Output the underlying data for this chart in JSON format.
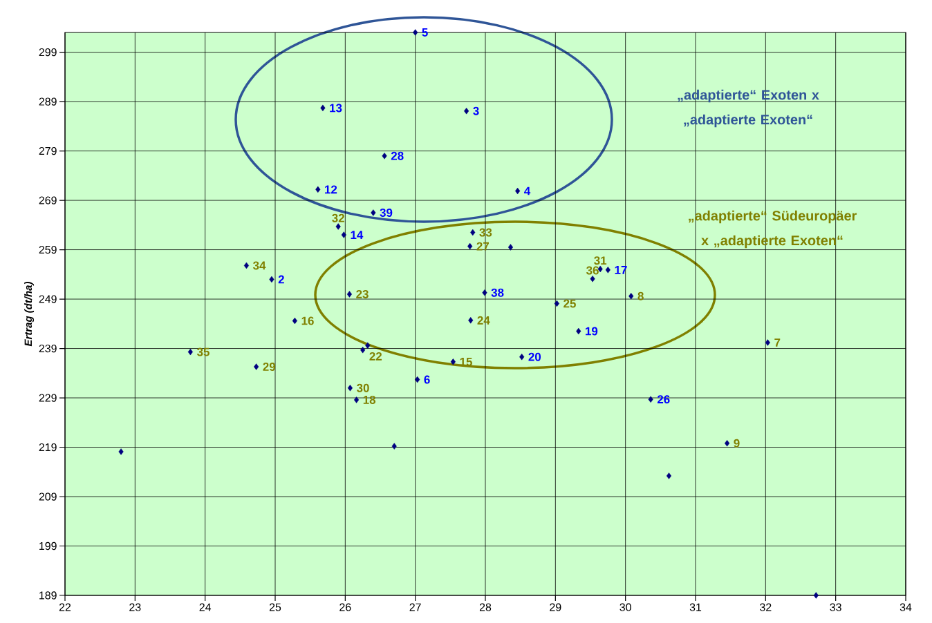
{
  "chart_data": {
    "type": "scatter",
    "ylabel": "Ertrag (dt/ha)",
    "xlim": [
      22,
      34
    ],
    "xticks": [
      22,
      23,
      24,
      25,
      26,
      27,
      28,
      29,
      30,
      31,
      32,
      33,
      34
    ],
    "ylim": [
      189,
      303
    ],
    "yticks": [
      189,
      199,
      209,
      219,
      229,
      239,
      249,
      259,
      269,
      279,
      289,
      299
    ],
    "grid": true,
    "marker": "diamond",
    "annotations": [
      "„adaptierte“ Exoten x „adaptierte Exoten“",
      "„adaptierte“ Südeuropäer x „adaptierte Exoten“",
      {
        "text": "5",
        "x": 27.0,
        "y": 303
      },
      {
        "text": "13",
        "x": 25.68,
        "y": 287.7
      },
      {
        "text": "3",
        "x": 27.73,
        "y": 287.1
      },
      {
        "text": "28",
        "x": 26.56,
        "y": 278.0
      },
      {
        "text": "12",
        "x": 25.61,
        "y": 271.2
      },
      {
        "text": "4",
        "x": 28.46,
        "y": 270.9
      },
      {
        "text": "39",
        "x": 26.4,
        "y": 266.5
      },
      {
        "text": "14",
        "x": 25.98,
        "y": 262.0
      },
      {
        "text": "2",
        "x": 24.95,
        "y": 253.0
      },
      {
        "text": "17",
        "x": 29.75,
        "y": 254.9
      },
      {
        "text": "38",
        "x": 27.99,
        "y": 250.3
      },
      {
        "text": "19",
        "x": 29.33,
        "y": 242.5
      },
      {
        "text": "20",
        "x": 28.52,
        "y": 237.3
      },
      {
        "text": "6",
        "x": 27.03,
        "y": 232.7
      },
      {
        "text": "26",
        "x": 30.36,
        "y": 228.7
      },
      {
        "text": "32",
        "x": 25.9,
        "y": 263.7
      },
      {
        "text": "33",
        "x": 27.82,
        "y": 262.5
      },
      {
        "text": "27",
        "x": 27.78,
        "y": 259.7
      },
      {
        "text": "34",
        "x": 24.59,
        "y": 255.8
      },
      {
        "text": "31",
        "x": 29.64,
        "y": 255.1
      },
      {
        "text": "36",
        "x": 29.53,
        "y": 253.1
      },
      {
        "text": "23",
        "x": 26.06,
        "y": 250.0
      },
      {
        "text": "8",
        "x": 30.08,
        "y": 249.6
      },
      {
        "text": "25",
        "x": 29.02,
        "y": 248.1
      },
      {
        "text": "16",
        "x": 25.28,
        "y": 244.6
      },
      {
        "text": "24",
        "x": 27.79,
        "y": 244.7
      },
      {
        "text": "7",
        "x": 32.03,
        "y": 240.2
      },
      {
        "text": "22",
        "x": 26.25,
        "y": 238.7
      },
      {
        "text": "35",
        "x": 23.79,
        "y": 238.3
      },
      {
        "text": "29",
        "x": 24.73,
        "y": 235.3
      },
      {
        "text": "15",
        "x": 27.54,
        "y": 236.3
      },
      {
        "text": "30",
        "x": 26.07,
        "y": 231.0
      },
      {
        "text": "18",
        "x": 26.16,
        "y": 228.6
      },
      {
        "text": "9",
        "x": 31.45,
        "y": 219.8
      }
    ],
    "series": [
      {
        "color": "#000080",
        "x": [
          27.0,
          25.68,
          27.73,
          26.56,
          25.61,
          28.46,
          26.4,
          25.98,
          24.95,
          29.75,
          27.99,
          29.33,
          28.52,
          27.03,
          30.36
        ],
        "values": [
          303,
          287.7,
          287.1,
          278.0,
          271.2,
          270.9,
          266.5,
          262.0,
          253.0,
          254.9,
          250.3,
          242.5,
          237.3,
          232.7,
          228.7
        ]
      },
      {
        "color": "#000080",
        "x": [
          25.9,
          27.82,
          27.78,
          24.59,
          29.64,
          29.53,
          26.06,
          30.08,
          29.02,
          25.28,
          27.79,
          32.03,
          26.25,
          23.79,
          24.73,
          27.54,
          26.07,
          26.16,
          31.45
        ],
        "values": [
          263.7,
          262.5,
          259.7,
          255.8,
          255.1,
          253.1,
          250.0,
          249.6,
          248.1,
          244.6,
          244.7,
          240.2,
          238.7,
          238.3,
          235.3,
          236.3,
          231.0,
          228.6,
          219.8
        ]
      },
      {
        "color": "#000080",
        "x": [
          26.32,
          28.36,
          22.8,
          26.7,
          30.62,
          32.72
        ],
        "values": [
          239.6,
          259.5,
          218.1,
          219.2,
          213.2,
          189.0
        ]
      }
    ]
  }
}
